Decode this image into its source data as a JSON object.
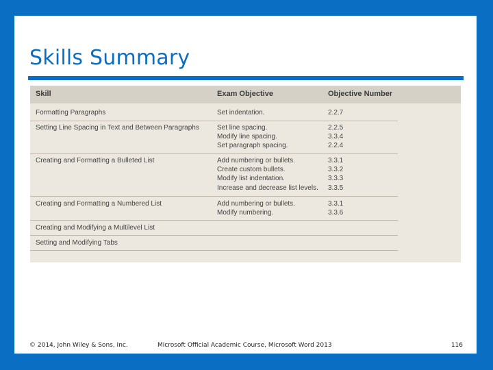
{
  "title": "Skills Summary",
  "table": {
    "headers": [
      "Skill",
      "Exam Objective",
      "Objective Number"
    ],
    "rows": [
      {
        "skill": "Formatting Paragraphs",
        "objectives": "Set indentation.",
        "numbers": "2.2.7"
      },
      {
        "skill": "Setting Line Spacing in Text and Between Paragraphs",
        "objectives": "Set line spacing.\nModify line spacing.\nSet paragraph spacing.",
        "numbers": "2.2.5\n3.3.4\n2.2.4"
      },
      {
        "skill": "Creating and Formatting a Bulleted List",
        "objectives": "Add numbering or bullets.\nCreate custom bullets.\nModify list indentation.\nIncrease and decrease list levels.",
        "numbers": "3.3.1\n3.3.2\n3.3.3\n3.3.5"
      },
      {
        "skill": "Creating and Formatting a Numbered List",
        "objectives": "Add numbering or bullets.\nModify numbering.",
        "numbers": "3.3.1\n3.3.6"
      },
      {
        "skill": "Creating and Modifying a Multilevel List",
        "objectives": "",
        "numbers": ""
      },
      {
        "skill": "Setting and Modifying Tabs",
        "objectives": "",
        "numbers": ""
      }
    ]
  },
  "footer": {
    "copyright": "© 2014, John Wiley & Sons, Inc.",
    "course": "Microsoft Official Academic Course, Microsoft Word 2013",
    "page": "116"
  },
  "colors": {
    "accent": "#0a6fc2",
    "table_bg": "#ece8df",
    "header_bg": "#d6d1c7"
  }
}
